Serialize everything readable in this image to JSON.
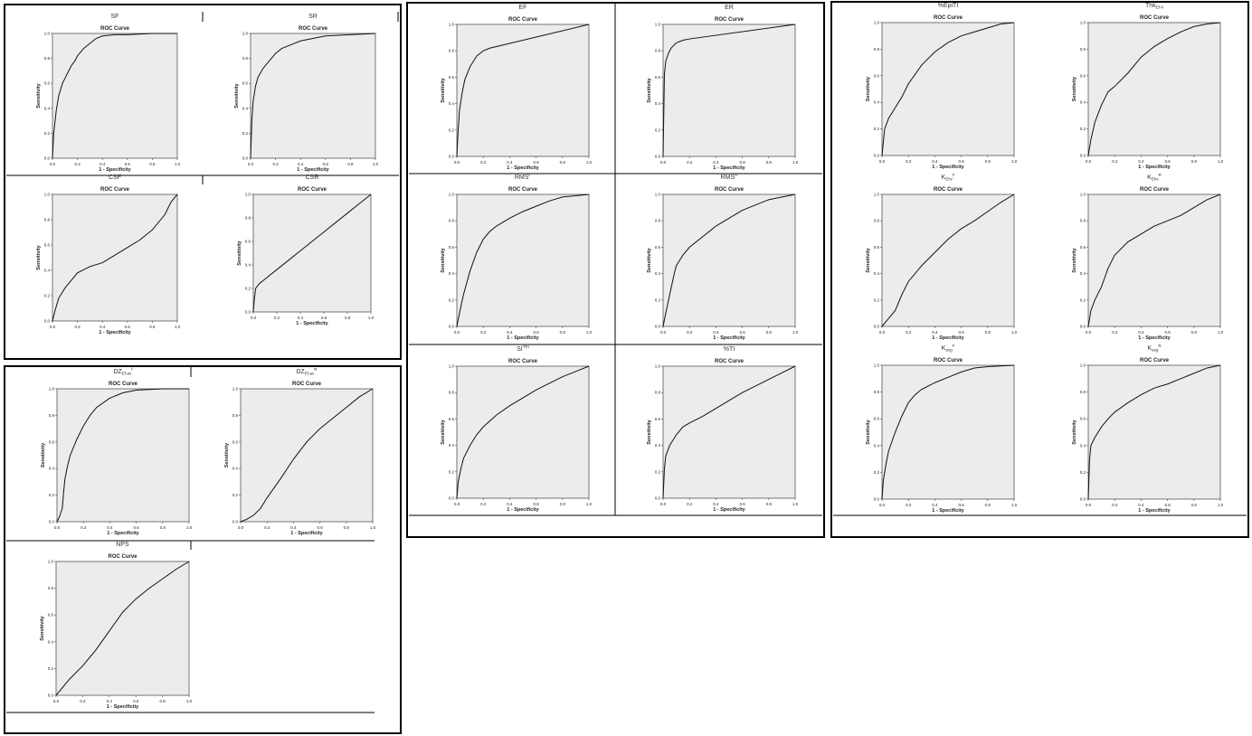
{
  "common": {
    "chart_title": "ROC Curve",
    "xlabel": "1 - Specificity",
    "ylabel": "Sensitivity",
    "x_ticks": [
      "0.0",
      "0.2",
      "0.4",
      "0.6",
      "0.8",
      "1.0"
    ],
    "y_ticks": [
      "0.0",
      "0.2",
      "0.4",
      "0.6",
      "0.8",
      "1.0"
    ],
    "plot_bg": "#ececec",
    "line_color": "#111111"
  },
  "chart_data": [
    {
      "panel": "SF",
      "header": "SF",
      "type": "line",
      "title": "ROC Curve",
      "xlabel": "1 - Specificity",
      "ylabel": "Sensitivity",
      "xlim": [
        0,
        1
      ],
      "ylim": [
        0,
        1
      ],
      "x": [
        0,
        0.01,
        0.03,
        0.05,
        0.08,
        0.1,
        0.13,
        0.15,
        0.18,
        0.2,
        0.25,
        0.3,
        0.35,
        0.4,
        0.5,
        0.6,
        0.8,
        1.0
      ],
      "y": [
        0,
        0.2,
        0.38,
        0.5,
        0.6,
        0.64,
        0.7,
        0.74,
        0.78,
        0.82,
        0.88,
        0.92,
        0.96,
        0.98,
        0.99,
        0.99,
        1.0,
        1.0
      ]
    },
    {
      "panel": "SR",
      "header": "SR",
      "type": "line",
      "title": "ROC Curve",
      "xlabel": "1 - Specificity",
      "ylabel": "Sensitivity",
      "xlim": [
        0,
        1
      ],
      "ylim": [
        0,
        1
      ],
      "x": [
        0,
        0.01,
        0.02,
        0.04,
        0.06,
        0.1,
        0.15,
        0.2,
        0.25,
        0.3,
        0.4,
        0.5,
        0.6,
        0.8,
        1.0
      ],
      "y": [
        0,
        0.3,
        0.45,
        0.58,
        0.65,
        0.72,
        0.78,
        0.84,
        0.88,
        0.9,
        0.94,
        0.96,
        0.98,
        0.99,
        1.0
      ]
    },
    {
      "panel": "CSF",
      "header": "CSF",
      "type": "line",
      "title": "ROC Curve",
      "xlabel": "1 - Specificity",
      "ylabel": "Sensitivity",
      "xlim": [
        0,
        1
      ],
      "ylim": [
        0,
        1
      ],
      "x": [
        0,
        0.02,
        0.05,
        0.1,
        0.15,
        0.2,
        0.3,
        0.4,
        0.5,
        0.6,
        0.7,
        0.8,
        0.9,
        0.95,
        1.0
      ],
      "y": [
        0,
        0.08,
        0.18,
        0.26,
        0.32,
        0.38,
        0.43,
        0.46,
        0.52,
        0.58,
        0.64,
        0.72,
        0.84,
        0.94,
        1.0
      ]
    },
    {
      "panel": "CSR",
      "header": "CSR",
      "type": "line",
      "title": "ROC Curve",
      "xlabel": "1 - Specificity",
      "ylabel": "Sensitivity",
      "xlim": [
        0,
        1
      ],
      "ylim": [
        0,
        1
      ],
      "x": [
        0,
        0.01,
        0.02,
        0.05,
        0.1,
        0.2,
        0.3,
        0.4,
        0.5,
        0.6,
        0.7,
        0.8,
        0.9,
        1.0
      ],
      "y": [
        0,
        0.12,
        0.2,
        0.24,
        0.28,
        0.36,
        0.44,
        0.52,
        0.6,
        0.68,
        0.76,
        0.84,
        0.92,
        1.0
      ]
    },
    {
      "panel": "DZ_F",
      "header": "DZ",
      "header_sub": "Ef-av",
      "header_sup": "f",
      "type": "line",
      "title": "ROC Curve",
      "xlabel": "1 - Specificity",
      "ylabel": "Sensitivity",
      "xlim": [
        0,
        1
      ],
      "ylim": [
        0,
        1
      ],
      "x": [
        0,
        0.02,
        0.04,
        0.05,
        0.06,
        0.08,
        0.1,
        0.15,
        0.2,
        0.25,
        0.3,
        0.4,
        0.5,
        0.6,
        0.8,
        1.0
      ],
      "y": [
        0,
        0.04,
        0.1,
        0.22,
        0.32,
        0.42,
        0.5,
        0.62,
        0.72,
        0.8,
        0.86,
        0.93,
        0.97,
        0.99,
        1.0,
        1.0
      ]
    },
    {
      "panel": "DZ_R",
      "header": "DZ",
      "header_sub": "Ef-av",
      "header_sup": "R",
      "type": "line",
      "title": "ROC Curve",
      "xlabel": "1 - Specificity",
      "ylabel": "Sensitivity",
      "xlim": [
        0,
        1
      ],
      "ylim": [
        0,
        1
      ],
      "x": [
        0,
        0.05,
        0.1,
        0.15,
        0.2,
        0.3,
        0.4,
        0.5,
        0.6,
        0.7,
        0.8,
        0.9,
        1.0
      ],
      "y": [
        0,
        0.02,
        0.05,
        0.1,
        0.18,
        0.32,
        0.47,
        0.6,
        0.7,
        0.78,
        0.86,
        0.94,
        1.0
      ]
    },
    {
      "panel": "NPS",
      "header": "NPS",
      "type": "line",
      "title": "ROC Curve",
      "xlabel": "1 - Specificity",
      "ylabel": "Sensitivity",
      "xlim": [
        0,
        1
      ],
      "ylim": [
        0,
        1
      ],
      "x": [
        0,
        0.05,
        0.1,
        0.2,
        0.3,
        0.4,
        0.5,
        0.6,
        0.7,
        0.8,
        0.9,
        1.0
      ],
      "y": [
        0,
        0.06,
        0.12,
        0.22,
        0.34,
        0.48,
        0.62,
        0.72,
        0.8,
        0.87,
        0.94,
        1.0
      ]
    },
    {
      "panel": "EF",
      "header": "EF",
      "type": "line",
      "title": "ROC Curve",
      "xlabel": "1 - Specificity",
      "ylabel": "Sensitivity",
      "xlim": [
        0,
        1
      ],
      "ylim": [
        0,
        1
      ],
      "x": [
        0,
        0.01,
        0.02,
        0.04,
        0.06,
        0.1,
        0.15,
        0.2,
        0.25,
        1.0
      ],
      "y": [
        0,
        0.2,
        0.35,
        0.48,
        0.58,
        0.68,
        0.76,
        0.8,
        0.82,
        1.0
      ]
    },
    {
      "panel": "ER",
      "header": "ER",
      "type": "line",
      "title": "ROC Curve",
      "xlabel": "1 - Specificity",
      "ylabel": "Sensitivity",
      "xlim": [
        0,
        1
      ],
      "ylim": [
        0,
        1
      ],
      "x": [
        0,
        0.01,
        0.02,
        0.04,
        0.06,
        0.1,
        0.15,
        0.2,
        1.0
      ],
      "y": [
        0,
        0.62,
        0.72,
        0.78,
        0.82,
        0.86,
        0.88,
        0.89,
        1.0
      ]
    },
    {
      "panel": "RMSF",
      "header": "RMS",
      "header_sup": "F",
      "type": "line",
      "title": "ROC Curve",
      "xlabel": "1 - Specificity",
      "ylabel": "Sensitivity",
      "xlim": [
        0,
        1
      ],
      "ylim": [
        0,
        1
      ],
      "x": [
        0,
        0.02,
        0.05,
        0.1,
        0.15,
        0.2,
        0.25,
        0.3,
        0.4,
        0.5,
        0.6,
        0.7,
        0.8,
        0.9,
        1.0
      ],
      "y": [
        0,
        0.1,
        0.24,
        0.42,
        0.56,
        0.66,
        0.72,
        0.76,
        0.82,
        0.87,
        0.91,
        0.95,
        0.98,
        0.99,
        1.0
      ]
    },
    {
      "panel": "RMSR",
      "header": "RMS",
      "header_sup": "R",
      "type": "line",
      "title": "ROC Curve",
      "xlabel": "1 - Specificity",
      "ylabel": "Sensitivity",
      "xlim": [
        0,
        1
      ],
      "ylim": [
        0,
        1
      ],
      "x": [
        0,
        0.02,
        0.05,
        0.08,
        0.1,
        0.15,
        0.2,
        0.3,
        0.4,
        0.5,
        0.6,
        0.7,
        0.8,
        0.9,
        1.0
      ],
      "y": [
        0,
        0.1,
        0.24,
        0.38,
        0.46,
        0.54,
        0.6,
        0.68,
        0.76,
        0.82,
        0.88,
        0.92,
        0.96,
        0.98,
        1.0
      ]
    },
    {
      "panel": "SITRI",
      "header": "SI",
      "header_sup": "TRI",
      "type": "line",
      "title": "ROC Curve",
      "xlabel": "1 - Specificity",
      "ylabel": "Sensitivity",
      "xlim": [
        0,
        1
      ],
      "ylim": [
        0,
        1
      ],
      "x": [
        0,
        0.01,
        0.03,
        0.05,
        0.1,
        0.15,
        0.2,
        0.3,
        0.4,
        0.5,
        0.6,
        0.7,
        0.8,
        0.9,
        1.0
      ],
      "y": [
        0,
        0.12,
        0.22,
        0.3,
        0.4,
        0.48,
        0.54,
        0.63,
        0.7,
        0.76,
        0.82,
        0.87,
        0.92,
        0.96,
        1.0
      ]
    },
    {
      "panel": "PctTI",
      "header": "%TI",
      "type": "line",
      "title": "ROC Curve",
      "xlabel": "1 - Specificity",
      "ylabel": "Sensitivity",
      "xlim": [
        0,
        1
      ],
      "ylim": [
        0,
        1
      ],
      "x": [
        0,
        0.01,
        0.02,
        0.05,
        0.1,
        0.15,
        0.2,
        0.3,
        0.4,
        0.5,
        0.6,
        0.7,
        0.8,
        0.9,
        1.0
      ],
      "y": [
        0,
        0.22,
        0.32,
        0.4,
        0.48,
        0.54,
        0.57,
        0.62,
        0.68,
        0.74,
        0.8,
        0.85,
        0.9,
        0.95,
        1.0
      ]
    },
    {
      "panel": "PctEpiTI",
      "header": "%EpiTI",
      "type": "line",
      "title": "ROC Curve",
      "xlabel": "1 - Specificity",
      "ylabel": "Sensitivity",
      "xlim": [
        0,
        1
      ],
      "ylim": [
        0,
        1
      ],
      "x": [
        0,
        0.02,
        0.05,
        0.1,
        0.15,
        0.2,
        0.3,
        0.4,
        0.5,
        0.6,
        0.7,
        0.8,
        0.9,
        1.0
      ],
      "y": [
        0,
        0.2,
        0.28,
        0.36,
        0.44,
        0.54,
        0.68,
        0.78,
        0.85,
        0.9,
        0.93,
        0.96,
        0.99,
        1.0
      ]
    },
    {
      "panel": "ThkEnh",
      "header": "Thk",
      "header_sub": "Ef-h",
      "type": "line",
      "title": "ROC Curve",
      "xlabel": "1 - Specificity",
      "ylabel": "Sensitivity",
      "xlim": [
        0,
        1
      ],
      "ylim": [
        0,
        1
      ],
      "x": [
        0,
        0.02,
        0.05,
        0.1,
        0.15,
        0.2,
        0.3,
        0.4,
        0.5,
        0.6,
        0.7,
        0.8,
        0.9,
        1.0
      ],
      "y": [
        0,
        0.12,
        0.25,
        0.38,
        0.48,
        0.52,
        0.62,
        0.74,
        0.82,
        0.88,
        0.93,
        0.97,
        0.99,
        1.0
      ]
    },
    {
      "panel": "KEhvF",
      "header": "K",
      "header_sub": "Ehv",
      "header_sup": "F",
      "type": "line",
      "title": "ROC Curve",
      "xlabel": "1 - Specificity",
      "ylabel": "Sensitivity",
      "xlim": [
        0,
        1
      ],
      "ylim": [
        0,
        1
      ],
      "x": [
        0,
        0.05,
        0.1,
        0.15,
        0.2,
        0.3,
        0.4,
        0.5,
        0.6,
        0.7,
        0.8,
        0.9,
        1.0
      ],
      "y": [
        0,
        0.06,
        0.12,
        0.24,
        0.34,
        0.46,
        0.56,
        0.66,
        0.74,
        0.8,
        0.87,
        0.94,
        1.0
      ]
    },
    {
      "panel": "KEhvR",
      "header": "K",
      "header_sub": "Ehv",
      "header_sup": "R",
      "type": "line",
      "title": "ROC Curve",
      "xlabel": "1 - Specificity",
      "ylabel": "Sensitivity",
      "xlim": [
        0,
        1
      ],
      "ylim": [
        0,
        1
      ],
      "x": [
        0,
        0.02,
        0.05,
        0.1,
        0.15,
        0.2,
        0.3,
        0.4,
        0.5,
        0.6,
        0.7,
        0.8,
        0.9,
        1.0
      ],
      "y": [
        0,
        0.12,
        0.2,
        0.3,
        0.44,
        0.54,
        0.64,
        0.7,
        0.76,
        0.8,
        0.84,
        0.9,
        0.96,
        1.0
      ]
    },
    {
      "panel": "KavgF",
      "header": "K",
      "header_sub": "avg",
      "header_sup": "F",
      "type": "line",
      "title": "ROC Curve",
      "xlabel": "1 - Specificity",
      "ylabel": "Sensitivity",
      "xlim": [
        0,
        1
      ],
      "ylim": [
        0,
        1
      ],
      "x": [
        0,
        0.01,
        0.03,
        0.05,
        0.1,
        0.15,
        0.2,
        0.25,
        0.3,
        0.4,
        0.5,
        0.6,
        0.7,
        0.8,
        1.0
      ],
      "y": [
        0,
        0.14,
        0.26,
        0.36,
        0.5,
        0.62,
        0.72,
        0.78,
        0.82,
        0.87,
        0.91,
        0.95,
        0.98,
        0.99,
        1.0
      ]
    },
    {
      "panel": "KavgR",
      "header": "K",
      "header_sub": "avg",
      "header_sup": "R",
      "type": "line",
      "title": "ROC Curve",
      "xlabel": "1 - Specificity",
      "ylabel": "Sensitivity",
      "xlim": [
        0,
        1
      ],
      "ylim": [
        0,
        1
      ],
      "x": [
        0,
        0.01,
        0.02,
        0.05,
        0.1,
        0.15,
        0.2,
        0.3,
        0.4,
        0.5,
        0.6,
        0.7,
        0.8,
        0.9,
        1.0
      ],
      "y": [
        0,
        0.3,
        0.4,
        0.46,
        0.54,
        0.6,
        0.65,
        0.72,
        0.78,
        0.83,
        0.86,
        0.9,
        0.94,
        0.98,
        1.0
      ]
    }
  ]
}
